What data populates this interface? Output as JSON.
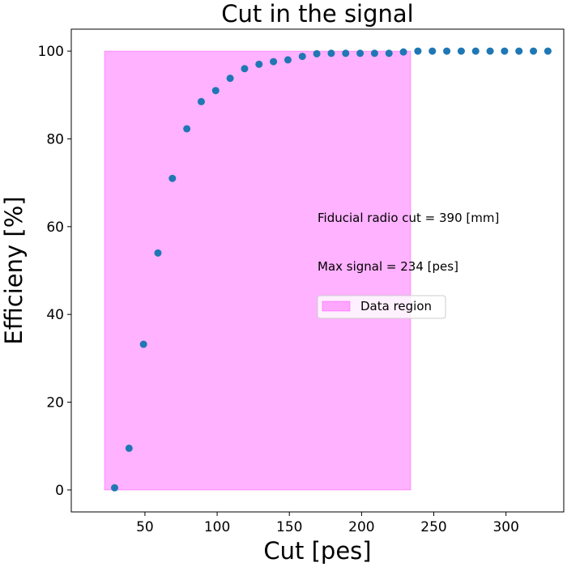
{
  "chart_data": {
    "type": "scatter",
    "title": "Cut in the signal",
    "xlabel": "Cut [pes]",
    "ylabel": "Efficieny [%]",
    "xlim": [
      -1,
      340
    ],
    "ylim": [
      -5,
      105
    ],
    "xticks": [
      50,
      100,
      150,
      200,
      250,
      300
    ],
    "yticks": [
      0,
      20,
      40,
      60,
      80,
      100
    ],
    "grid": false,
    "series": [
      {
        "color": "#1f77b4",
        "x": [
          29,
          39,
          49,
          59,
          69,
          79,
          89,
          99,
          109,
          119,
          129,
          139,
          149,
          159,
          169,
          179,
          189,
          199,
          209,
          219,
          229,
          239,
          249,
          259,
          269,
          279,
          289,
          299,
          309,
          319,
          329
        ],
        "y": [
          0.5,
          9.5,
          33.2,
          54.0,
          71.0,
          82.3,
          88.5,
          91.0,
          93.8,
          96.0,
          97.0,
          97.6,
          98.0,
          98.8,
          99.4,
          99.5,
          99.5,
          99.5,
          99.5,
          99.5,
          99.8,
          100,
          100,
          100,
          100,
          100,
          100,
          100,
          100,
          100,
          100
        ]
      }
    ],
    "region": {
      "label": "Data region",
      "x_start": 22,
      "x_end": 234,
      "y_start": 0,
      "y_end": 100,
      "color": "#ff00ff"
    },
    "annotations": [
      "Fiducial radio cut = 390 [mm]",
      "Max signal = 234 [pes]"
    ],
    "legend_position": "center-right"
  }
}
